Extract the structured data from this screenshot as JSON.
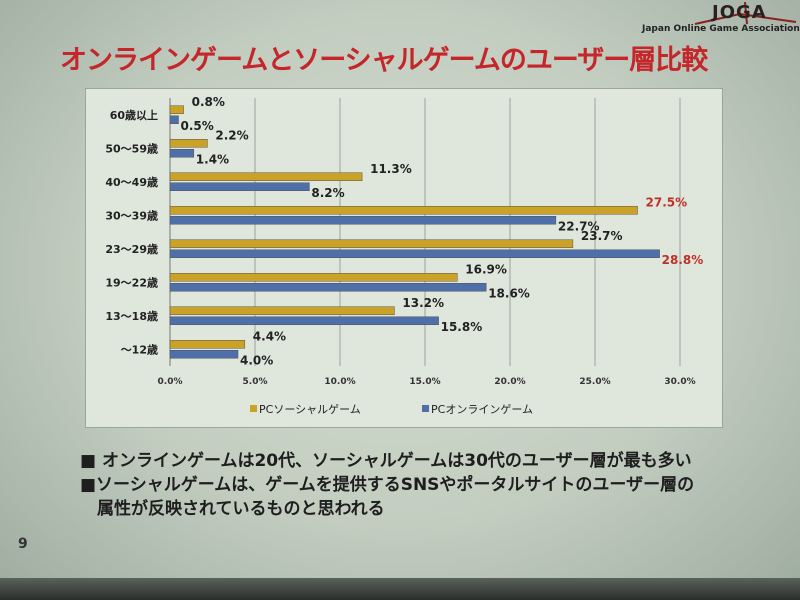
{
  "logo": {
    "text": "JOGA",
    "subtitle": "Japan Online Game Association"
  },
  "title": "オンラインゲームとソーシャルゲームのユーザー層比較",
  "chart_data": {
    "type": "bar",
    "orientation": "horizontal",
    "categories": [
      "60歳以上",
      "50～59歳",
      "40～49歳",
      "30～39歳",
      "23～29歳",
      "19～22歳",
      "13～18歳",
      "～12歳"
    ],
    "series": [
      {
        "name": "PCソーシャルゲーム",
        "color": "#c9a227",
        "values": [
          0.8,
          2.2,
          11.3,
          27.5,
          23.7,
          16.9,
          13.2,
          4.4
        ]
      },
      {
        "name": "PCオンラインゲーム",
        "color": "#4f6fa8",
        "values": [
          0.5,
          1.4,
          8.2,
          22.7,
          28.8,
          18.6,
          15.8,
          4.0
        ]
      }
    ],
    "xlim": [
      0,
      30
    ],
    "xticks": [
      "0.0%",
      "5.0%",
      "10.0%",
      "15.0%",
      "20.0%",
      "25.0%",
      "30.0%"
    ],
    "highlight_color": "#c0302a",
    "highlighted_labels": [
      "27.5%",
      "28.8%"
    ],
    "grid": true,
    "legend": "bottom"
  },
  "bullets": [
    "■ オンラインゲームは20代、ソーシャルゲームは30代のユーザー層が最も多い",
    "■ソーシャルゲームは、ゲームを提供するSNSやポータルサイトのユーザー層の",
    "　属性が反映されているものと思われる"
  ],
  "page_number": "9"
}
